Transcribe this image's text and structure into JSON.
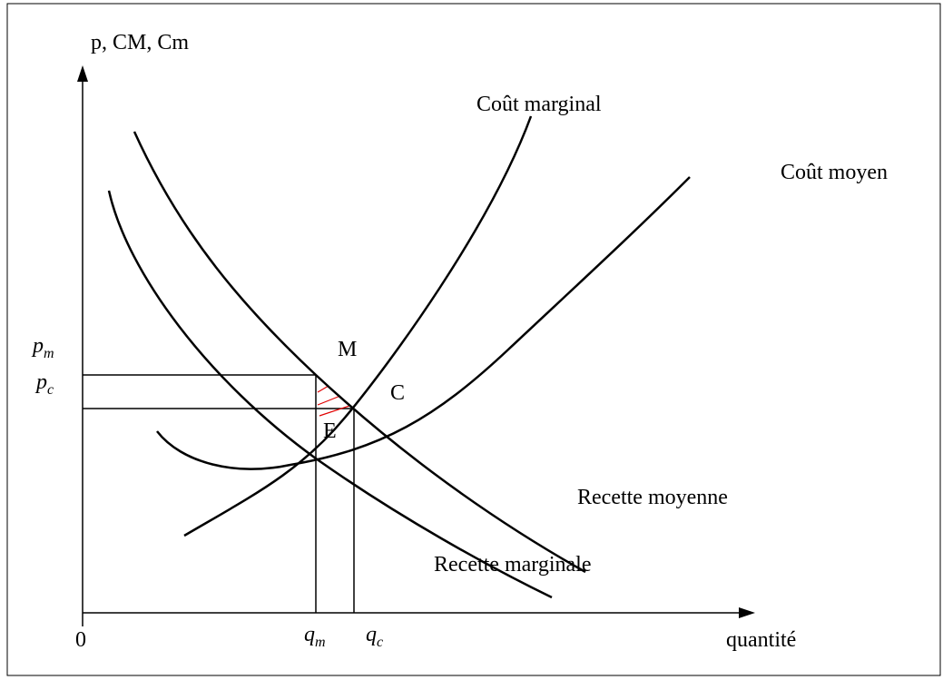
{
  "axes": {
    "y_label": "p, CM, Cm",
    "x_label": "quantité",
    "origin": "0"
  },
  "curves": {
    "marginal_cost": "Coût marginal",
    "average_cost": "Coût moyen",
    "average_revenue": "Recette moyenne",
    "marginal_revenue": "Recette marginale"
  },
  "points": {
    "monopoly": "M",
    "competition": "C",
    "equilibrium": "E"
  },
  "levels": {
    "p_m": {
      "base": "p",
      "sub": "m"
    },
    "p_c": {
      "base": "p",
      "sub": "c"
    },
    "q_m": {
      "base": "q",
      "sub": "m"
    },
    "q_c": {
      "base": "q",
      "sub": "c"
    }
  }
}
